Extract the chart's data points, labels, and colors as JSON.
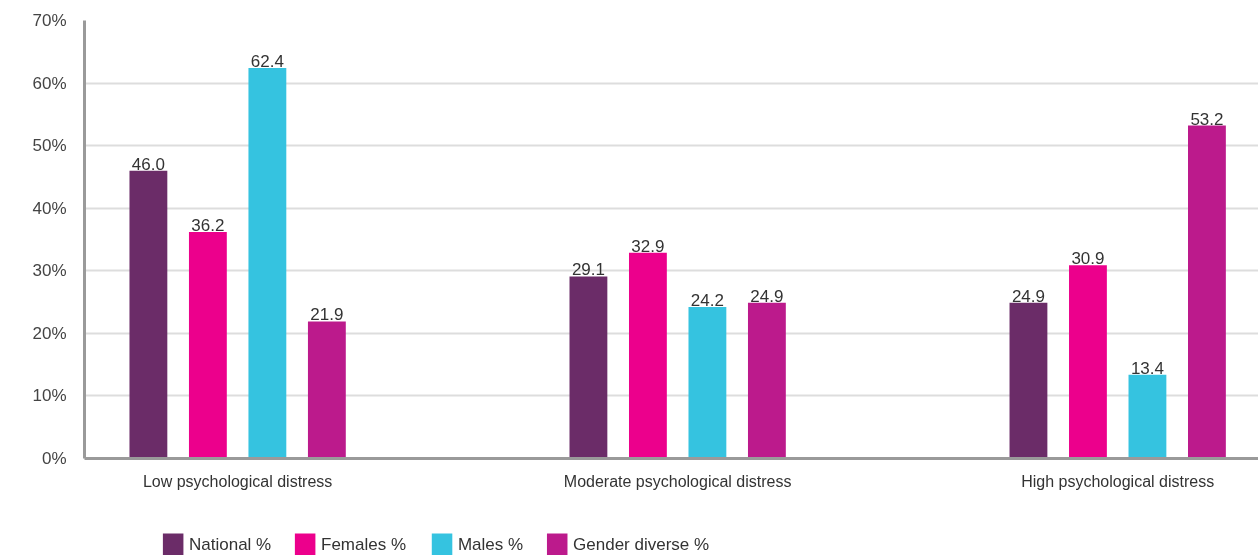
{
  "chart_data": {
    "type": "bar",
    "categories": [
      "Low psychological distress",
      "Moderate psychological distress",
      "High psychological distress"
    ],
    "series": [
      {
        "name": "National %",
        "color": "#6b2c68",
        "values": [
          46.0,
          29.1,
          24.9
        ],
        "value_labels": [
          "46.0",
          "29.1",
          "24.9"
        ]
      },
      {
        "name": "Females %",
        "color": "#ec008c",
        "values": [
          36.2,
          32.9,
          30.9
        ],
        "value_labels": [
          "36.2",
          "32.9",
          "30.9"
        ]
      },
      {
        "name": "Males %",
        "color": "#35c3e0",
        "values": [
          62.4,
          24.2,
          13.4
        ],
        "value_labels": [
          "62.4",
          "24.2",
          "13.4"
        ]
      },
      {
        "name": "Gender diverse %",
        "color": "#bc1a8c",
        "values": [
          21.9,
          24.9,
          53.2
        ],
        "value_labels": [
          "21.9",
          "24.9",
          "53.2"
        ]
      }
    ],
    "ylim": [
      0,
      70
    ],
    "yticks": [
      {
        "value": 0,
        "label": "0%"
      },
      {
        "value": 10,
        "label": "10%"
      },
      {
        "value": 20,
        "label": "20%"
      },
      {
        "value": 30,
        "label": "30%"
      },
      {
        "value": 40,
        "label": "40%"
      },
      {
        "value": 50,
        "label": "50%"
      },
      {
        "value": 60,
        "label": "60%"
      },
      {
        "value": 70,
        "label": "70%"
      }
    ],
    "grid": "y",
    "legend": "bottom left"
  }
}
